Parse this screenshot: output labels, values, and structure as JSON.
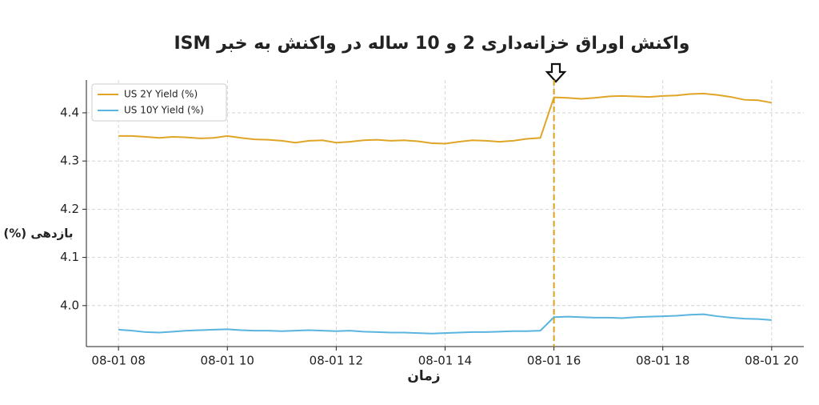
{
  "chart_data": {
    "type": "line",
    "title": "واکنش اوراق خزانه‌داری 2 و 10 ساله در واکنش به خبر ISM",
    "x_label": "زمان",
    "y_label": "بازدهی (%)",
    "x": [
      8,
      8.25,
      8.5,
      8.75,
      9,
      9.25,
      9.5,
      9.75,
      10,
      10.25,
      10.5,
      10.75,
      11,
      11.25,
      11.5,
      11.75,
      12,
      12.25,
      12.5,
      12.75,
      13,
      13.25,
      13.5,
      13.75,
      14,
      14.25,
      14.5,
      14.75,
      15,
      15.25,
      15.5,
      15.75,
      16,
      16.25,
      16.5,
      16.75,
      17,
      17.25,
      17.5,
      17.75,
      18,
      18.25,
      18.5,
      18.75,
      19,
      19.25,
      19.5,
      19.75,
      20
    ],
    "series": [
      {
        "name": "US 2Y Yield (%)",
        "color": "#e0a526",
        "values": [
          4.352,
          4.352,
          4.35,
          4.348,
          4.35,
          4.349,
          4.347,
          4.348,
          4.352,
          4.348,
          4.345,
          4.344,
          4.342,
          4.338,
          4.342,
          4.343,
          4.338,
          4.34,
          4.343,
          4.344,
          4.342,
          4.343,
          4.341,
          4.337,
          4.336,
          4.34,
          4.343,
          4.342,
          4.34,
          4.342,
          4.346,
          4.348,
          4.432,
          4.431,
          4.429,
          4.431,
          4.434,
          4.435,
          4.434,
          4.433,
          4.435,
          4.436,
          4.439,
          4.44,
          4.437,
          4.433,
          4.427,
          4.426,
          4.421
        ]
      },
      {
        "name": "US 10Y Yield (%)",
        "color": "#5ab4e0",
        "values": [
          3.95,
          3.948,
          3.945,
          3.944,
          3.946,
          3.948,
          3.949,
          3.95,
          3.951,
          3.949,
          3.948,
          3.948,
          3.947,
          3.948,
          3.949,
          3.948,
          3.947,
          3.948,
          3.946,
          3.945,
          3.944,
          3.944,
          3.943,
          3.942,
          3.943,
          3.944,
          3.945,
          3.945,
          3.946,
          3.947,
          3.947,
          3.948,
          3.976,
          3.977,
          3.976,
          3.975,
          3.975,
          3.974,
          3.976,
          3.977,
          3.978,
          3.979,
          3.981,
          3.982,
          3.978,
          3.975,
          3.973,
          3.972,
          3.97
        ]
      }
    ],
    "xlim": [
      7.41,
      20.59
    ],
    "xticks": [
      {
        "value": 8,
        "label": "08-01 08"
      },
      {
        "value": 10,
        "label": "08-01 10"
      },
      {
        "value": 12,
        "label": "08-01 12"
      },
      {
        "value": 14,
        "label": "08-01 14"
      },
      {
        "value": 16,
        "label": "08-01 16"
      },
      {
        "value": 18,
        "label": "08-01 18"
      },
      {
        "value": 20,
        "label": "08-01 20"
      }
    ],
    "ylim": [
      3.915,
      4.468
    ],
    "yticks": [
      {
        "value": 4,
        "label": "4.0"
      },
      4.1,
      4.2,
      4.3,
      4.4
    ],
    "grid": true,
    "legend": "upper-left",
    "vline": {
      "x": 16,
      "color": "#d9a21b"
    }
  }
}
